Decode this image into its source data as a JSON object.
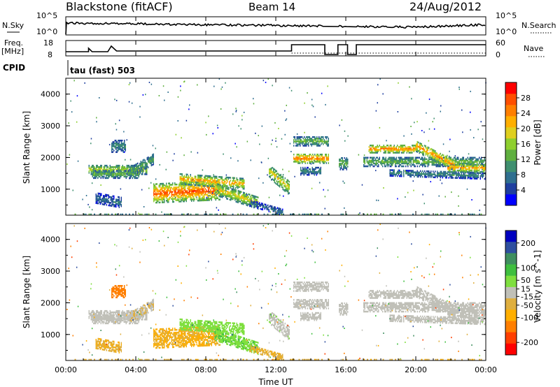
{
  "header": {
    "station": "Blackstone (fitACF)",
    "beam": "Beam 14",
    "date": "24/Aug/2012"
  },
  "top_panels": {
    "nsky_label": "N.Sky",
    "nsky_ticks": [
      "10^5",
      "10^0"
    ],
    "nsearch_label": "N.Search",
    "nsearch_ticks": [
      "10^5",
      "10^0"
    ],
    "freq_label": "Freq.",
    "freq_unit": "[MHz]",
    "freq_ticks": [
      "18",
      "8"
    ],
    "nave_label": "Nave",
    "nave_ticks": [
      "60",
      "0"
    ],
    "cpid_label": "CPID",
    "cpid_value": "tau (fast) 503"
  },
  "colors": {
    "power_scale": [
      "#0000ff",
      "#1f3f9f",
      "#2f6f8f",
      "#3f8f6f",
      "#5faf3f",
      "#8fcf2f",
      "#dfcf1f",
      "#ffaf00",
      "#ff7f00",
      "#ff4f00",
      "#ff0000"
    ],
    "velocity_scale": [
      "#0000c0",
      "#2f4f9f",
      "#3f8f5f",
      "#3fbf3f",
      "#7fdf3f",
      "#c0c0b8",
      "#dfaf3f",
      "#ffaf00",
      "#ff7f00",
      "#ff3f00",
      "#ff0000"
    ]
  },
  "chart_data": [
    {
      "type": "heatmap",
      "parameter": "Power",
      "ylabel": "Slant Range [km]",
      "ylim": [
        180,
        4500
      ],
      "yticks": [
        "1000",
        "2000",
        "3000",
        "4000"
      ],
      "colorbar_label": "Power [dB]",
      "colorbar_ticks": [
        "4",
        "8",
        "12",
        "16",
        "20",
        "24",
        "28"
      ],
      "colorbar_range": [
        0,
        32
      ],
      "grid": false
    },
    {
      "type": "heatmap",
      "parameter": "Velocity",
      "xlabel": "Time UT",
      "ylabel": "Slant Range [km]",
      "ylim": [
        180,
        4500
      ],
      "xlim": [
        "00:00",
        "24:00"
      ],
      "xticks": [
        "00:00",
        "04:00",
        "08:00",
        "12:00",
        "16:00",
        "20:00",
        "00:00"
      ],
      "yticks": [
        "1000",
        "2000",
        "3000",
        "4000"
      ],
      "colorbar_label": "Velocity [m s^-1]",
      "colorbar_ticks": [
        "200",
        "100",
        "50",
        "15",
        "-15",
        "-50",
        "-100",
        "-200"
      ],
      "colorbar_range": [
        -250,
        250
      ],
      "grid": false
    }
  ]
}
